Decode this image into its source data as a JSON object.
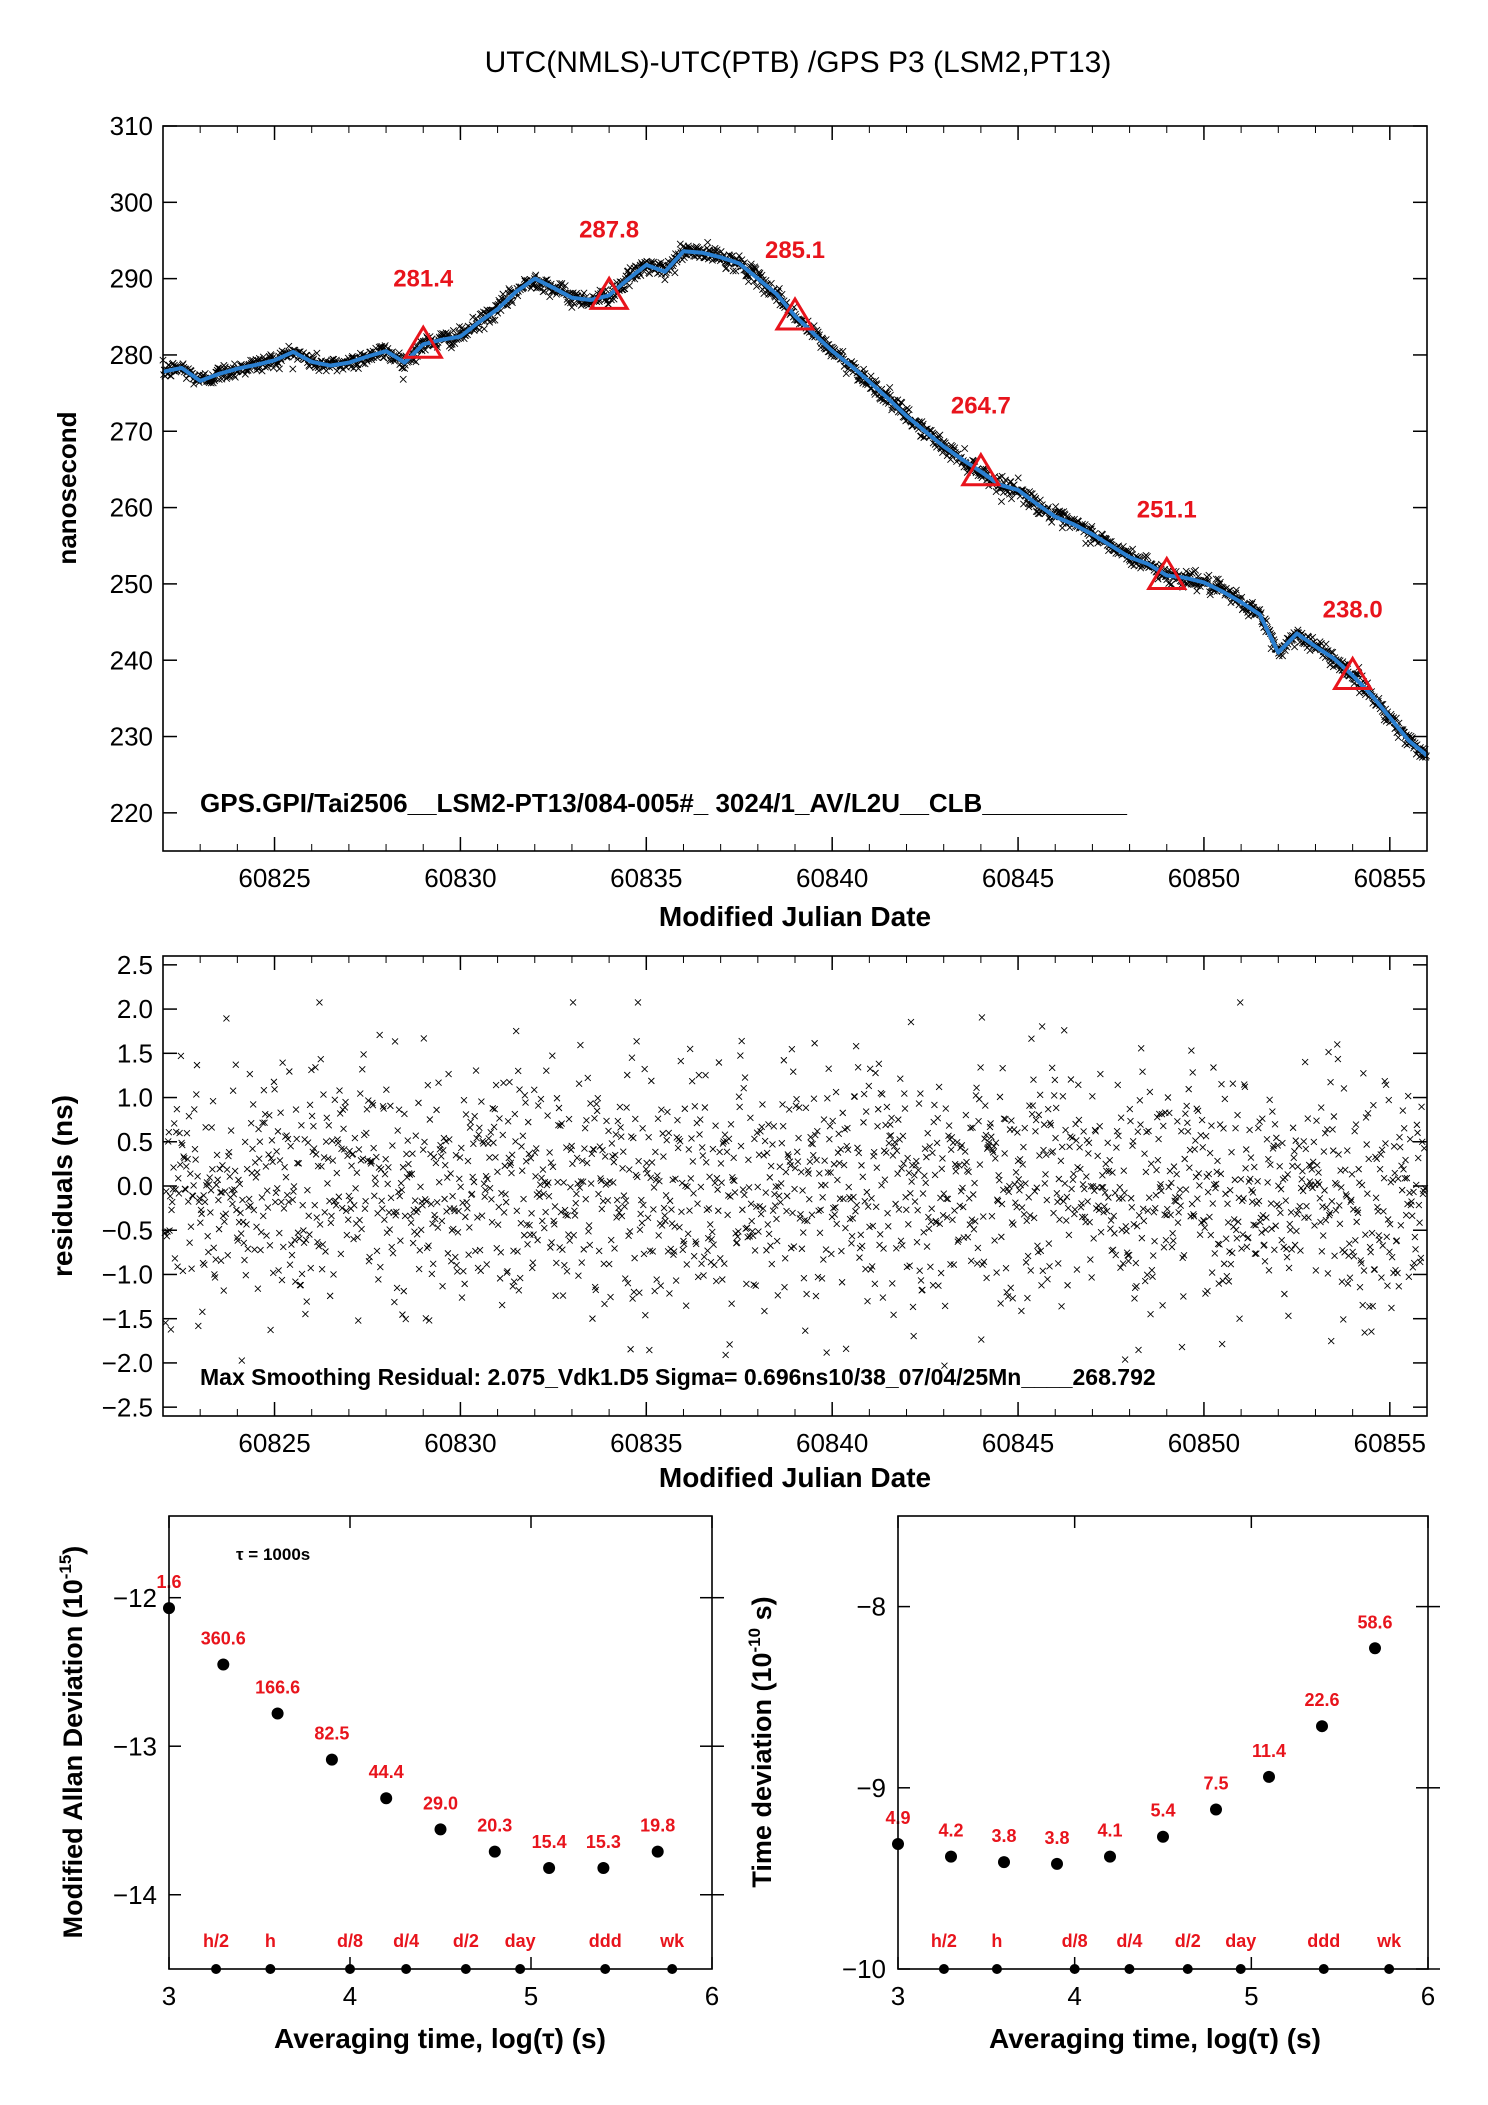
{
  "figure": {
    "title": "UTC(NMLS)-UTC(PTB)  /GPS  P3  (LSM2,PT13)",
    "colors": {
      "smooth_line": "#2a7fd0",
      "annotation": "#e8141c",
      "points": "#000000"
    }
  },
  "chart_data": [
    {
      "type": "scatter",
      "id": "timing",
      "xlabel": "Modified Julian Date",
      "ylabel": "nanosecond",
      "xlim": [
        60822,
        60856
      ],
      "ylim": [
        215,
        310
      ],
      "xticks": [
        60825,
        60830,
        60835,
        60840,
        60845,
        60850,
        60855
      ],
      "yticks": [
        220,
        230,
        240,
        250,
        260,
        270,
        280,
        290,
        300,
        310
      ],
      "note": "GPS.GPI/Tai2506__LSM2-PT13/084-005#_  3024/1_AV/L2U__CLB__________",
      "series": [
        {
          "style": "smooth-line",
          "x": [
            60822,
            60822.5,
            60823,
            60823.5,
            60824,
            60824.5,
            60825,
            60825.5,
            60826,
            60826.5,
            60827,
            60827.5,
            60828,
            60828.5,
            60829,
            60829.5,
            60830,
            60830.5,
            60831,
            60831.5,
            60832,
            60832.5,
            60833,
            60833.5,
            60834,
            60834.5,
            60835,
            60835.5,
            60836,
            60836.5,
            60837,
            60837.5,
            60838,
            60838.5,
            60839,
            60839.5,
            60840,
            60840.5,
            60841,
            60841.5,
            60842,
            60842.5,
            60843,
            60843.5,
            60844,
            60844.5,
            60845,
            60845.5,
            60846,
            60846.5,
            60847,
            60847.5,
            60848,
            60848.5,
            60849,
            60849.5,
            60850,
            60850.5,
            60851,
            60851.5,
            60852,
            60852.5,
            60853,
            60853.5,
            60854,
            60854.5,
            60855,
            60855.5,
            60856
          ],
          "y": [
            277.8,
            278.3,
            276.6,
            277.5,
            278.2,
            278.7,
            279.3,
            280.4,
            279.1,
            278.6,
            279.0,
            279.8,
            280.5,
            279.0,
            281.4,
            282.0,
            282.4,
            284.3,
            286.0,
            288.3,
            290.0,
            288.8,
            287.5,
            287.2,
            287.8,
            289.9,
            291.8,
            290.9,
            293.6,
            293.4,
            292.8,
            292.0,
            290.0,
            288.0,
            285.1,
            282.8,
            280.5,
            278.6,
            276.5,
            274.3,
            272.0,
            270.0,
            268.0,
            266.3,
            264.7,
            263.0,
            262.3,
            260.5,
            258.8,
            257.8,
            256.5,
            255.0,
            253.5,
            252.6,
            251.1,
            250.8,
            250.2,
            249.0,
            247.6,
            246.0,
            241.0,
            243.5,
            241.8,
            240.2,
            238.0,
            235.5,
            232.5,
            229.5,
            227.5
          ]
        },
        {
          "style": "triangle-markers",
          "x": [
            60829,
            60834,
            60839,
            60844,
            60849,
            60854
          ],
          "y": [
            281.4,
            287.8,
            285.1,
            264.7,
            251.1,
            238.0
          ],
          "labels": [
            "281.4",
            "287.8",
            "285.1",
            "264.7",
            "251.1",
            "238.0"
          ]
        }
      ]
    },
    {
      "type": "scatter",
      "id": "residuals",
      "xlabel": "Modified Julian Date",
      "ylabel": "residuals (ns)",
      "xlim": [
        60822,
        60856
      ],
      "ylim": [
        -2.6,
        2.6
      ],
      "xticks": [
        60825,
        60830,
        60835,
        60840,
        60845,
        60850,
        60855
      ],
      "yticks": [
        -2.5,
        -2.0,
        -1.5,
        -1.0,
        -0.5,
        0.0,
        0.5,
        1.0,
        1.5,
        2.0,
        2.5
      ],
      "ytick_labels": [
        "−2.5",
        "−2.0",
        "−1.5",
        "−1.0",
        "−0.5",
        "0.0",
        "0.5",
        "1.0",
        "1.5",
        "2.0",
        "2.5"
      ],
      "note": "Max Smoothing Residual: 2.075_Vdk1.D5  Sigma= 0.696ns10/38_07/04/25Mn____268.792",
      "sigma": 0.696,
      "max_residual": 2.075
    },
    {
      "type": "scatter",
      "id": "mdev",
      "xlabel": "Averaging time, log(τ) (s)",
      "ylabel": "Modified Allan Deviation (10",
      "ylabel_sup": "-15",
      "ylabel_end": ")",
      "xlim": [
        3,
        6
      ],
      "ylim": [
        -14.5,
        -11.45
      ],
      "xticks": [
        3,
        4,
        5,
        6
      ],
      "yticks": [
        -14,
        -13,
        -12
      ],
      "ytick_labels": [
        "−14",
        "−13",
        "−12"
      ],
      "tau_note": "τ = 1000s",
      "points": {
        "x": [
          3.0,
          3.3,
          3.6,
          3.9,
          4.2,
          4.5,
          4.8,
          5.1,
          5.4,
          5.7
        ],
        "y": [
          -12.07,
          -12.45,
          -12.78,
          -13.09,
          -13.35,
          -13.56,
          -13.71,
          -13.82,
          -13.82,
          -13.71
        ],
        "labels": [
          "1.6",
          "360.6",
          "166.6",
          "82.5",
          "44.4",
          "29.0",
          "20.3",
          "15.4",
          "15.3",
          "19.8"
        ]
      },
      "markers": {
        "x": [
          3.26,
          3.56,
          4.0,
          4.31,
          4.64,
          4.94,
          5.41,
          5.78
        ],
        "labels": [
          "h/2",
          "h",
          "d/8",
          "d/4",
          "d/2",
          "day",
          "ddd",
          "wk"
        ]
      }
    },
    {
      "type": "scatter",
      "id": "tdev",
      "xlabel": "Averaging time, log(τ) (s)",
      "ylabel": "Time deviation (10",
      "ylabel_sup": "-10",
      "ylabel_end": " s)",
      "xlim": [
        3,
        6
      ],
      "ylim": [
        -10,
        -7.5
      ],
      "xticks": [
        3,
        4,
        5,
        6
      ],
      "yticks": [
        -10,
        -9,
        -8
      ],
      "ytick_labels": [
        "−10",
        "−9",
        "−8"
      ],
      "points": {
        "x": [
          3.0,
          3.3,
          3.6,
          3.9,
          4.2,
          4.5,
          4.8,
          5.1,
          5.4,
          5.7
        ],
        "y": [
          -9.31,
          -9.38,
          -9.41,
          -9.42,
          -9.38,
          -9.27,
          -9.12,
          -8.94,
          -8.66,
          -8.23
        ],
        "labels": [
          "4.9",
          "4.2",
          "3.8",
          "3.8",
          "4.1",
          "5.4",
          "7.5",
          "11.4",
          "22.6",
          "58.6"
        ]
      },
      "markers": {
        "x": [
          3.26,
          3.56,
          4.0,
          4.31,
          4.64,
          4.94,
          5.41,
          5.78
        ],
        "labels": [
          "h/2",
          "h",
          "d/8",
          "d/4",
          "d/2",
          "day",
          "ddd",
          "wk"
        ]
      }
    }
  ]
}
